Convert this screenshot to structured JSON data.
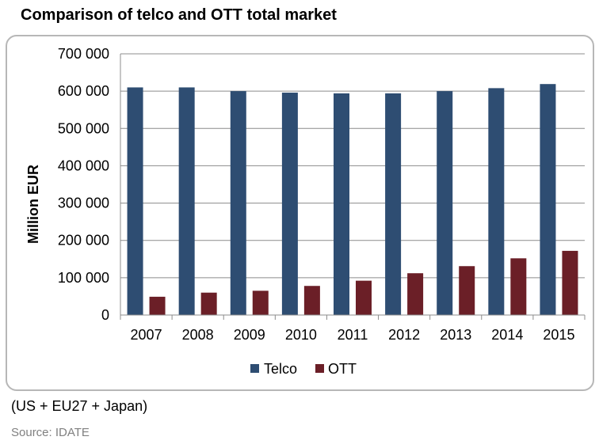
{
  "title": "Comparison of telco and OTT total market",
  "note": "(US + EU27 + Japan)",
  "source": "Source: IDATE",
  "colors": {
    "telco": "#2e4d72",
    "ott": "#6b1f27",
    "grid": "#8c8c8c"
  },
  "chart_data": {
    "type": "bar",
    "title": "Comparison of telco and OTT total market",
    "xlabel": "",
    "ylabel": "Million EUR",
    "ylim": [
      0,
      700000
    ],
    "yticks": [
      0,
      100000,
      200000,
      300000,
      400000,
      500000,
      600000,
      700000
    ],
    "ytick_labels": [
      "0",
      "100 000",
      "200 000",
      "300 000",
      "400 000",
      "500 000",
      "600 000",
      "700 000"
    ],
    "grid": true,
    "legend_position": "bottom",
    "categories": [
      "2007",
      "2008",
      "2009",
      "2010",
      "2011",
      "2012",
      "2013",
      "2014",
      "2015"
    ],
    "series": [
      {
        "name": "Telco",
        "values": [
          610000,
          610000,
          600000,
          596000,
          594000,
          594000,
          600000,
          608000,
          619000
        ]
      },
      {
        "name": "OTT",
        "values": [
          49000,
          60000,
          65000,
          78000,
          92000,
          112000,
          131000,
          152000,
          172000
        ]
      }
    ]
  }
}
